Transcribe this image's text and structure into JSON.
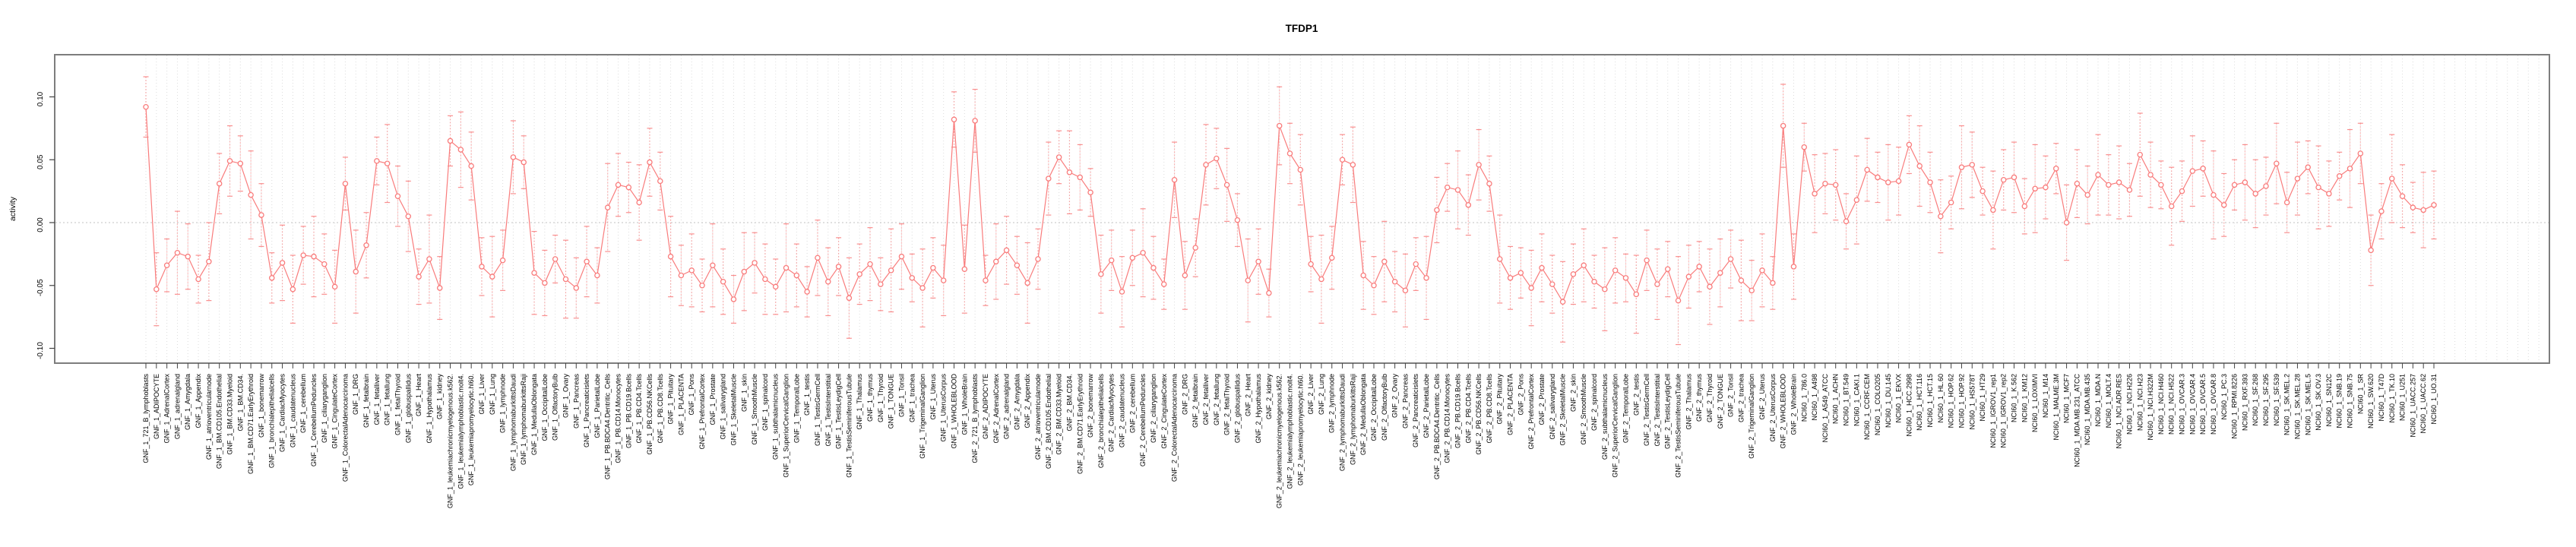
{
  "title": "TFDP1",
  "chart_data": {
    "type": "line",
    "title": "TFDP1",
    "ylabel": "activity",
    "xlabel": "",
    "ylim": [
      -0.112,
      0.134
    ],
    "yticks": [
      0.1,
      0.05,
      0.0,
      -0.05,
      -0.1
    ],
    "ytick_labels": [
      "0.10",
      "0.05",
      "0.00",
      "-0.05",
      "-0.10"
    ],
    "grid": "vertical dotted gridline per category, dotted horizontal line at 0",
    "legend_position": "none",
    "marker": "open-circle",
    "error_bars": true,
    "series_color": "#f97c7c",
    "gridline_color": "#dcdcdc",
    "zeroline_color": "#c0c0c0",
    "box_color": "#7d7d7d",
    "panels": {
      "tissue_panel": [
        "721_B_lymphoblasts",
        "ADIPOCYTE",
        "AdrenalCortex",
        "adrenalgland",
        "Amygdala",
        "Appendix",
        "atrioventricularnode",
        "BM.CD105.Endothelial",
        "BM.CD33.Myeloid",
        "BM.CD34.",
        "BM.CD71.EarlyErythroid",
        "bonemarrow",
        "bronchialepithelialcells",
        "CardiacMyocytes",
        "caudatenucleus",
        "cerebellum",
        "CerebellumPeduncles",
        "ciliaryganglion",
        "CingulateCortex",
        "ColorectalAdenocarcinoma",
        "DRG",
        "fetalbrain",
        "fetalliver",
        "fetallung",
        "fetalThyroid",
        "globuspallidus",
        "Heart",
        "Hypothalamus",
        "kidney",
        "leukemiachronicmyelogenous.k562.",
        "leukemialymphoblastic.molt4.",
        "leukemiapromyelocytic.hl60.",
        "Liver",
        "Lung",
        "lymphnode",
        "lymphomaburkittsDaudi",
        "lymphomaburkittsRaji",
        "MedullaOblongata",
        "OccipitalLobe",
        "OlfactoryBulb",
        "Ovary",
        "Pancreas",
        "Pancreaticislets",
        "ParietalLobe",
        "PB.BDCA4.Dentritic_Cells",
        "PB.CD14.Monocytes",
        "PB.CD19.Bcells",
        "PB.CD4.Tcells",
        "PB.CD56.NKCells",
        "PB.CD8.Tcells",
        "Pituitary",
        "PLACENTA",
        "Pons",
        "PrefrontalCortex",
        "Prostate",
        "salivarygland",
        "SkeletalMuscle",
        "skin",
        "SmoothMuscle",
        "spinalcord",
        "subthalamicnucleus",
        "SuperiorCervicalGanglion",
        "TemporalLobe",
        "testis",
        "TestisGermCell",
        "TestisInterstitial",
        "TestisLeydigCell",
        "TestisSeminiferousTubule",
        "Thalamus",
        "thymus",
        "Thyroid",
        "TONGUE",
        "Tonsil",
        "trachea",
        "TrigeminalGanglion",
        "Uterus",
        "UterusCorpus",
        "WHOLEBLOOD",
        "WholeBrain"
      ],
      "nci60_panel": [
        "786.0",
        "A498",
        "A549_ATCC",
        "ACHN",
        "BT.549",
        "CAKI.1",
        "CCRF.CEM",
        "COLO205",
        "DU.145",
        "EKVX",
        "HCC.2998",
        "HCT.116",
        "HCT.15",
        "HL.60",
        "HOP.62",
        "HOP.92",
        "HS578T",
        "HT29",
        "IGROV1_rep1",
        "IGROV1_rep2",
        "K.562",
        "KM12",
        "LOXIMVI",
        "M14",
        "MALME.3M",
        "MCF7",
        "MDA.MB.231_ATCC",
        "MDA.MB.435",
        "MDA.N",
        "MOLT.4",
        "NCI.ADR.RES",
        "NCI.H226",
        "NCI.H23",
        "NCI.H322M",
        "NCI.H460",
        "NCI.H522",
        "OVCAR.3",
        "OVCAR.4",
        "OVCAR.5",
        "OVCAR.8",
        "PC.3",
        "RPMI.8226",
        "RXF.393",
        "SF.268",
        "SF.295",
        "SF.539",
        "SK.MEL.2",
        "SK.MEL.28",
        "SK.MEL.5",
        "SK.OV.3",
        "SN12C",
        "SNB.19",
        "SNB.75",
        "SR",
        "SW.620",
        "T47D",
        "TK.10",
        "U251",
        "UACC.257",
        "UACC.62",
        "UO.31"
      ]
    },
    "groups": [
      {
        "prefix": "GNF_1_",
        "panel": "tissue_panel"
      },
      {
        "prefix": "GNF_2_",
        "panel": "tissue_panel"
      },
      {
        "prefix": "NCI60_1_",
        "panel": "nci60_panel"
      }
    ],
    "values": [
      0.092,
      -0.053,
      -0.034,
      -0.024,
      -0.027,
      -0.045,
      -0.031,
      0.031,
      0.049,
      0.047,
      0.022,
      0.006,
      -0.044,
      -0.032,
      -0.053,
      -0.026,
      -0.027,
      -0.033,
      -0.051,
      0.031,
      -0.039,
      -0.018,
      0.049,
      0.047,
      0.021,
      0.005,
      -0.043,
      -0.029,
      -0.052,
      0.065,
      0.058,
      0.045,
      -0.035,
      -0.043,
      -0.03,
      0.052,
      0.048,
      -0.04,
      -0.048,
      -0.029,
      -0.045,
      -0.052,
      -0.031,
      -0.042,
      0.012,
      0.03,
      0.028,
      0.016,
      0.048,
      0.033,
      -0.027,
      -0.042,
      -0.038,
      -0.05,
      -0.034,
      -0.047,
      -0.061,
      -0.039,
      -0.032,
      -0.045,
      -0.051,
      -0.036,
      -0.042,
      -0.055,
      -0.028,
      -0.047,
      -0.035,
      -0.06,
      -0.041,
      -0.033,
      -0.049,
      -0.038,
      -0.027,
      -0.044,
      -0.052,
      -0.036,
      -0.046,
      0.082,
      -0.037,
      0.081,
      -0.046,
      -0.031,
      -0.022,
      -0.034,
      -0.048,
      -0.029,
      0.035,
      0.052,
      0.04,
      0.036,
      0.024,
      -0.041,
      -0.03,
      -0.055,
      -0.028,
      -0.024,
      -0.036,
      -0.049,
      0.034,
      -0.042,
      -0.02,
      0.046,
      0.051,
      0.03,
      0.002,
      -0.046,
      -0.031,
      -0.056,
      0.077,
      0.055,
      0.042,
      -0.033,
      -0.045,
      -0.028,
      0.05,
      0.046,
      -0.042,
      -0.05,
      -0.031,
      -0.047,
      -0.054,
      -0.033,
      -0.044,
      0.01,
      0.028,
      0.026,
      0.014,
      0.046,
      0.031,
      -0.029,
      -0.044,
      -0.04,
      -0.052,
      -0.036,
      -0.049,
      -0.063,
      -0.041,
      -0.034,
      -0.047,
      -0.053,
      -0.038,
      -0.044,
      -0.057,
      -0.03,
      -0.049,
      -0.037,
      -0.062,
      -0.043,
      -0.035,
      -0.051,
      -0.04,
      -0.029,
      -0.046,
      -0.054,
      -0.038,
      -0.048,
      0.077,
      -0.035,
      0.06,
      0.023,
      0.031,
      0.03,
      0.001,
      0.018,
      0.042,
      0.036,
      0.032,
      0.033,
      0.062,
      0.045,
      0.032,
      0.005,
      0.016,
      0.044,
      0.046,
      0.025,
      0.01,
      0.034,
      0.036,
      0.013,
      0.027,
      0.028,
      0.043,
      0.0,
      0.031,
      0.022,
      0.038,
      0.03,
      0.032,
      0.026,
      0.054,
      0.038,
      0.03,
      0.013,
      0.025,
      0.041,
      0.043,
      0.022,
      0.014,
      0.03,
      0.032,
      0.023,
      0.029,
      0.047,
      0.016,
      0.035,
      0.044,
      0.028,
      0.023,
      0.037,
      0.043,
      0.055,
      -0.022,
      0.009,
      0.035,
      0.021,
      0.012,
      0.01,
      0.014
    ],
    "err_cycle": [
      0.024,
      0.029,
      0.021,
      0.033,
      0.026,
      0.019,
      0.031,
      0.024,
      0.028,
      0.022,
      0.035,
      0.025,
      0.02,
      0.03,
      0.027,
      0.023,
      0.032
    ]
  }
}
